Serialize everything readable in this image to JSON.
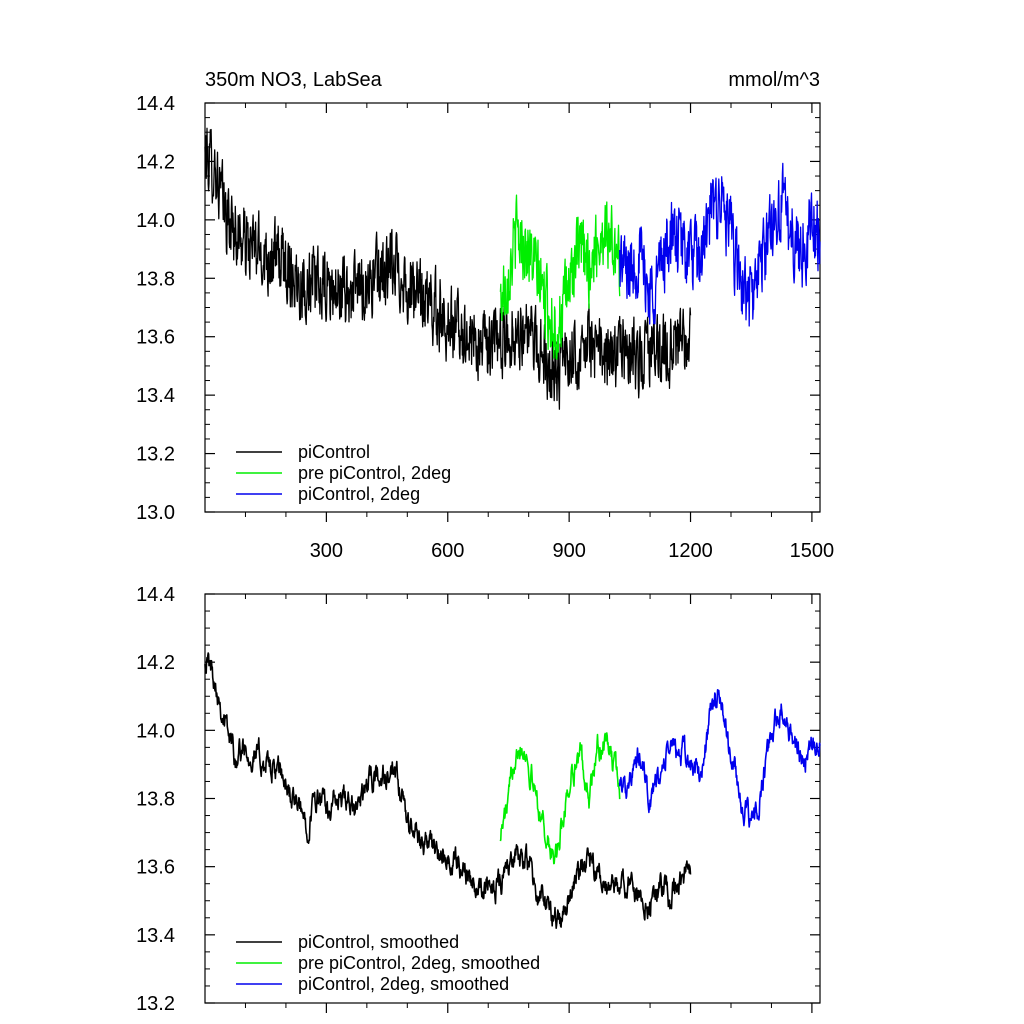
{
  "chart_data": [
    {
      "type": "line",
      "title": "350m NO3, LabSea",
      "units": "mmol/m^3",
      "xlabel": "",
      "ylabel": "",
      "xlim": [
        0,
        1520
      ],
      "ylim": [
        13.0,
        14.4
      ],
      "xticks": [
        300,
        600,
        900,
        1200,
        1500
      ],
      "xtick_labels": [
        "300",
        "600",
        "900",
        "1200",
        "1500"
      ],
      "yticks": [
        13.0,
        13.2,
        13.4,
        13.6,
        13.8,
        14.0,
        14.2,
        14.4
      ],
      "ytick_labels": [
        "13.0",
        "13.2",
        "13.4",
        "13.6",
        "13.8",
        "14.0",
        "14.2",
        "14.4"
      ],
      "grid": false,
      "legend_position": "bottom-left",
      "series": [
        {
          "name": "piControl",
          "color": "#000000",
          "x": [
            0,
            25,
            50,
            75,
            100,
            125,
            150,
            175,
            200,
            225,
            250,
            275,
            300,
            325,
            350,
            375,
            400,
            425,
            450,
            475,
            500,
            525,
            550,
            575,
            600,
            625,
            650,
            675,
            700,
            725,
            750,
            775,
            800,
            825,
            850,
            875,
            900,
            925,
            950,
            975,
            1000,
            1025,
            1050,
            1075,
            1100,
            1125,
            1150,
            1175,
            1200
          ],
          "y": [
            14.22,
            14.18,
            14.02,
            13.96,
            13.92,
            13.9,
            13.88,
            13.87,
            13.85,
            13.8,
            13.78,
            13.77,
            13.76,
            13.75,
            13.75,
            13.76,
            13.78,
            13.81,
            13.82,
            13.84,
            13.77,
            13.74,
            13.72,
            13.69,
            13.65,
            13.63,
            13.6,
            13.57,
            13.56,
            13.58,
            13.6,
            13.62,
            13.6,
            13.55,
            13.52,
            13.48,
            13.52,
            13.56,
            13.58,
            13.54,
            13.52,
            13.56,
            13.54,
            13.52,
            13.54,
            13.56,
            13.55,
            13.58,
            13.56
          ],
          "amplitude": 0.11
        },
        {
          "name": "pre piControl, 2deg",
          "color": "#00ee00",
          "x": [
            730,
            750,
            770,
            790,
            810,
            830,
            850,
            870,
            890,
            910,
            930,
            950,
            970,
            990,
            1010,
            1025
          ],
          "y": [
            13.72,
            13.82,
            13.95,
            13.92,
            13.86,
            13.78,
            13.68,
            13.62,
            13.72,
            13.84,
            13.9,
            13.84,
            13.92,
            13.98,
            13.9,
            13.84
          ],
          "amplitude": 0.11
        },
        {
          "name": "piControl, 2deg",
          "color": "#0000ee",
          "x": [
            1025,
            1050,
            1075,
            1100,
            1125,
            1150,
            1175,
            1200,
            1225,
            1250,
            1275,
            1300,
            1325,
            1350,
            1375,
            1400,
            1425,
            1450,
            1475,
            1500,
            1520
          ],
          "y": [
            13.86,
            13.82,
            13.88,
            13.74,
            13.84,
            13.94,
            13.92,
            13.88,
            13.86,
            14.02,
            14.08,
            13.94,
            13.78,
            13.72,
            13.86,
            13.98,
            14.06,
            13.96,
            13.88,
            13.98,
            13.95
          ],
          "amplitude": 0.11
        }
      ]
    },
    {
      "type": "line",
      "title": "",
      "xlabel": "",
      "ylabel": "",
      "xlim": [
        0,
        1520
      ],
      "ylim": [
        13.2,
        14.4
      ],
      "xticks": [
        300,
        600,
        900,
        1200,
        1500
      ],
      "yticks": [
        13.2,
        13.4,
        13.6,
        13.8,
        14.0,
        14.2,
        14.4
      ],
      "ytick_labels": [
        "13.2",
        "13.4",
        "13.6",
        "13.8",
        "14.0",
        "14.2",
        "14.4"
      ],
      "grid": false,
      "legend_position": "bottom-left",
      "series": [
        {
          "name": "piControl, smoothed",
          "color": "#000000",
          "x": [
            0,
            25,
            50,
            75,
            100,
            125,
            150,
            175,
            200,
            225,
            250,
            275,
            300,
            325,
            350,
            375,
            400,
            425,
            450,
            475,
            500,
            525,
            550,
            575,
            600,
            625,
            650,
            675,
            700,
            725,
            750,
            775,
            800,
            825,
            850,
            875,
            900,
            925,
            950,
            975,
            1000,
            1025,
            1050,
            1075,
            1100,
            1125,
            1150,
            1175,
            1200
          ],
          "y": [
            14.22,
            14.16,
            14.02,
            13.93,
            13.95,
            13.93,
            13.9,
            13.88,
            13.84,
            13.78,
            13.73,
            13.8,
            13.77,
            13.79,
            13.78,
            13.76,
            13.84,
            13.87,
            13.86,
            13.85,
            13.73,
            13.69,
            13.68,
            13.63,
            13.6,
            13.62,
            13.58,
            13.55,
            13.53,
            13.56,
            13.6,
            13.63,
            13.6,
            13.52,
            13.47,
            13.43,
            13.52,
            13.58,
            13.6,
            13.55,
            13.52,
            13.55,
            13.54,
            13.52,
            13.5,
            13.54,
            13.5,
            13.58,
            13.57
          ],
          "amplitude": 0.045
        },
        {
          "name": "pre piControl, 2deg, smoothed",
          "color": "#00ee00",
          "x": [
            730,
            750,
            770,
            790,
            810,
            830,
            850,
            870,
            890,
            910,
            930,
            950,
            970,
            990,
            1010,
            1025
          ],
          "y": [
            13.7,
            13.78,
            13.98,
            13.95,
            13.85,
            13.76,
            13.66,
            13.62,
            13.78,
            13.9,
            13.92,
            13.8,
            13.94,
            13.98,
            13.9,
            13.82
          ],
          "amplitude": 0.045
        },
        {
          "name": "piControl, 2deg, smoothed",
          "color": "#0000ee",
          "x": [
            1025,
            1050,
            1075,
            1100,
            1125,
            1150,
            1175,
            1200,
            1225,
            1250,
            1275,
            1300,
            1325,
            1350,
            1375,
            1400,
            1425,
            1450,
            1475,
            1500,
            1520
          ],
          "y": [
            13.86,
            13.84,
            13.92,
            13.8,
            13.86,
            13.96,
            13.93,
            13.9,
            13.86,
            14.06,
            14.1,
            13.92,
            13.8,
            13.7,
            13.82,
            13.98,
            14.06,
            14.0,
            13.9,
            13.98,
            13.96
          ],
          "amplitude": 0.045
        }
      ]
    }
  ]
}
